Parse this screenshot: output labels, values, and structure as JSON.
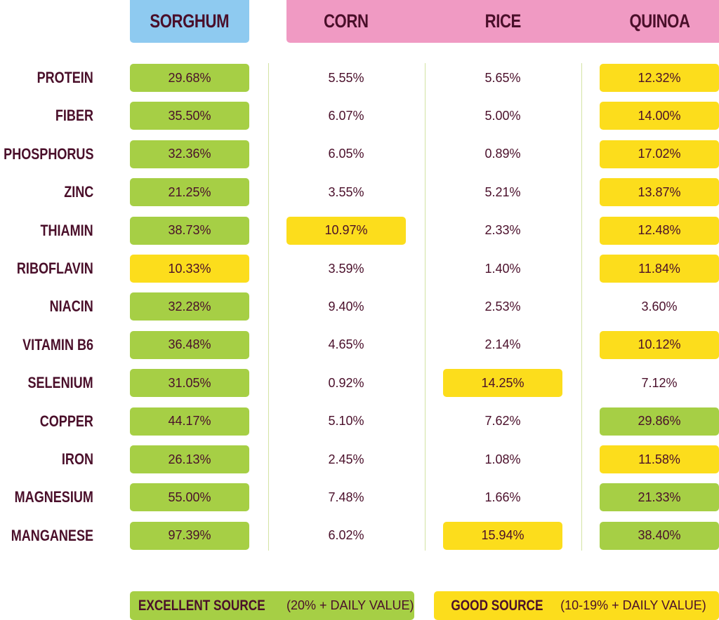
{
  "header": {
    "columns": [
      {
        "text": "SORGHUM",
        "color": "#8ecaf0"
      },
      {
        "text": "CORN",
        "color": "#f09ac3"
      },
      {
        "text": "RICE",
        "color": "#f09ac3"
      },
      {
        "text": "QUINOA",
        "color": "#f09ac3"
      }
    ]
  },
  "table": {
    "rows": [
      {
        "label": "PROTEIN",
        "cells": [
          {
            "text": "29.68%",
            "color": "#a6cf45"
          },
          {
            "text": "5.55%",
            "color": null
          },
          {
            "text": "5.65%",
            "color": null
          },
          {
            "text": "12.32%",
            "color": "#fcdd1c"
          }
        ]
      },
      {
        "label": "FIBER",
        "cells": [
          {
            "text": "35.50%",
            "color": "#a6cf45"
          },
          {
            "text": "6.07%",
            "color": null
          },
          {
            "text": "5.00%",
            "color": null
          },
          {
            "text": "14.00%",
            "color": "#fcdd1c"
          }
        ]
      },
      {
        "label": "PHOSPHORUS",
        "cells": [
          {
            "text": "32.36%",
            "color": "#a6cf45"
          },
          {
            "text": "6.05%",
            "color": null
          },
          {
            "text": "0.89%",
            "color": null
          },
          {
            "text": "17.02%",
            "color": "#fcdd1c"
          }
        ]
      },
      {
        "label": "ZINC",
        "cells": [
          {
            "text": "21.25%",
            "color": "#a6cf45"
          },
          {
            "text": "3.55%",
            "color": null
          },
          {
            "text": "5.21%",
            "color": null
          },
          {
            "text": "13.87%",
            "color": "#fcdd1c"
          }
        ]
      },
      {
        "label": "THIAMIN",
        "cells": [
          {
            "text": "38.73%",
            "color": "#a6cf45"
          },
          {
            "text": "10.97%",
            "color": "#fcdd1c"
          },
          {
            "text": "2.33%",
            "color": null
          },
          {
            "text": "12.48%",
            "color": "#fcdd1c"
          }
        ]
      },
      {
        "label": "RIBOFLAVIN",
        "cells": [
          {
            "text": "10.33%",
            "color": "#fcdd1c"
          },
          {
            "text": "3.59%",
            "color": null
          },
          {
            "text": "1.40%",
            "color": null
          },
          {
            "text": "11.84%",
            "color": "#fcdd1c"
          }
        ]
      },
      {
        "label": "NIACIN",
        "cells": [
          {
            "text": "32.28%",
            "color": "#a6cf45"
          },
          {
            "text": "9.40%",
            "color": null
          },
          {
            "text": "2.53%",
            "color": null
          },
          {
            "text": "3.60%",
            "color": null
          }
        ]
      },
      {
        "label": "VITAMIN B6",
        "cells": [
          {
            "text": "36.48%",
            "color": "#a6cf45"
          },
          {
            "text": "4.65%",
            "color": null
          },
          {
            "text": "2.14%",
            "color": null
          },
          {
            "text": "10.12%",
            "color": "#fcdd1c"
          }
        ]
      },
      {
        "label": "SELENIUM",
        "cells": [
          {
            "text": "31.05%",
            "color": "#a6cf45"
          },
          {
            "text": "0.92%",
            "color": null
          },
          {
            "text": "14.25%",
            "color": "#fcdd1c"
          },
          {
            "text": "7.12%",
            "color": null
          }
        ]
      },
      {
        "label": "COPPER",
        "cells": [
          {
            "text": "44.17%",
            "color": "#a6cf45"
          },
          {
            "text": "5.10%",
            "color": null
          },
          {
            "text": "7.62%",
            "color": null
          },
          {
            "text": "29.86%",
            "color": "#a6cf45"
          }
        ]
      },
      {
        "label": "IRON",
        "cells": [
          {
            "text": "26.13%",
            "color": "#a6cf45"
          },
          {
            "text": "2.45%",
            "color": null
          },
          {
            "text": "1.08%",
            "color": null
          },
          {
            "text": "11.58%",
            "color": "#fcdd1c"
          }
        ]
      },
      {
        "label": "MAGNESIUM",
        "cells": [
          {
            "text": "55.00%",
            "color": "#a6cf45"
          },
          {
            "text": "7.48%",
            "color": null
          },
          {
            "text": "1.66%",
            "color": null
          },
          {
            "text": "21.33%",
            "color": "#a6cf45"
          }
        ]
      },
      {
        "label": "MANGANESE",
        "cells": [
          {
            "text": "97.39%",
            "color": "#a6cf45"
          },
          {
            "text": "6.02%",
            "color": null
          },
          {
            "text": "15.94%",
            "color": "#fcdd1c"
          },
          {
            "text": "38.40%",
            "color": "#a6cf45"
          }
        ]
      }
    ]
  },
  "legend": {
    "items": [
      {
        "label": "EXCELLENT SOURCE",
        "note": "(20% + DAILY VALUE)",
        "color": "#a6cf45"
      },
      {
        "label": "GOOD SOURCE",
        "note": "(10-19% + DAILY VALUE)",
        "color": "#fcdd1c"
      }
    ]
  }
}
